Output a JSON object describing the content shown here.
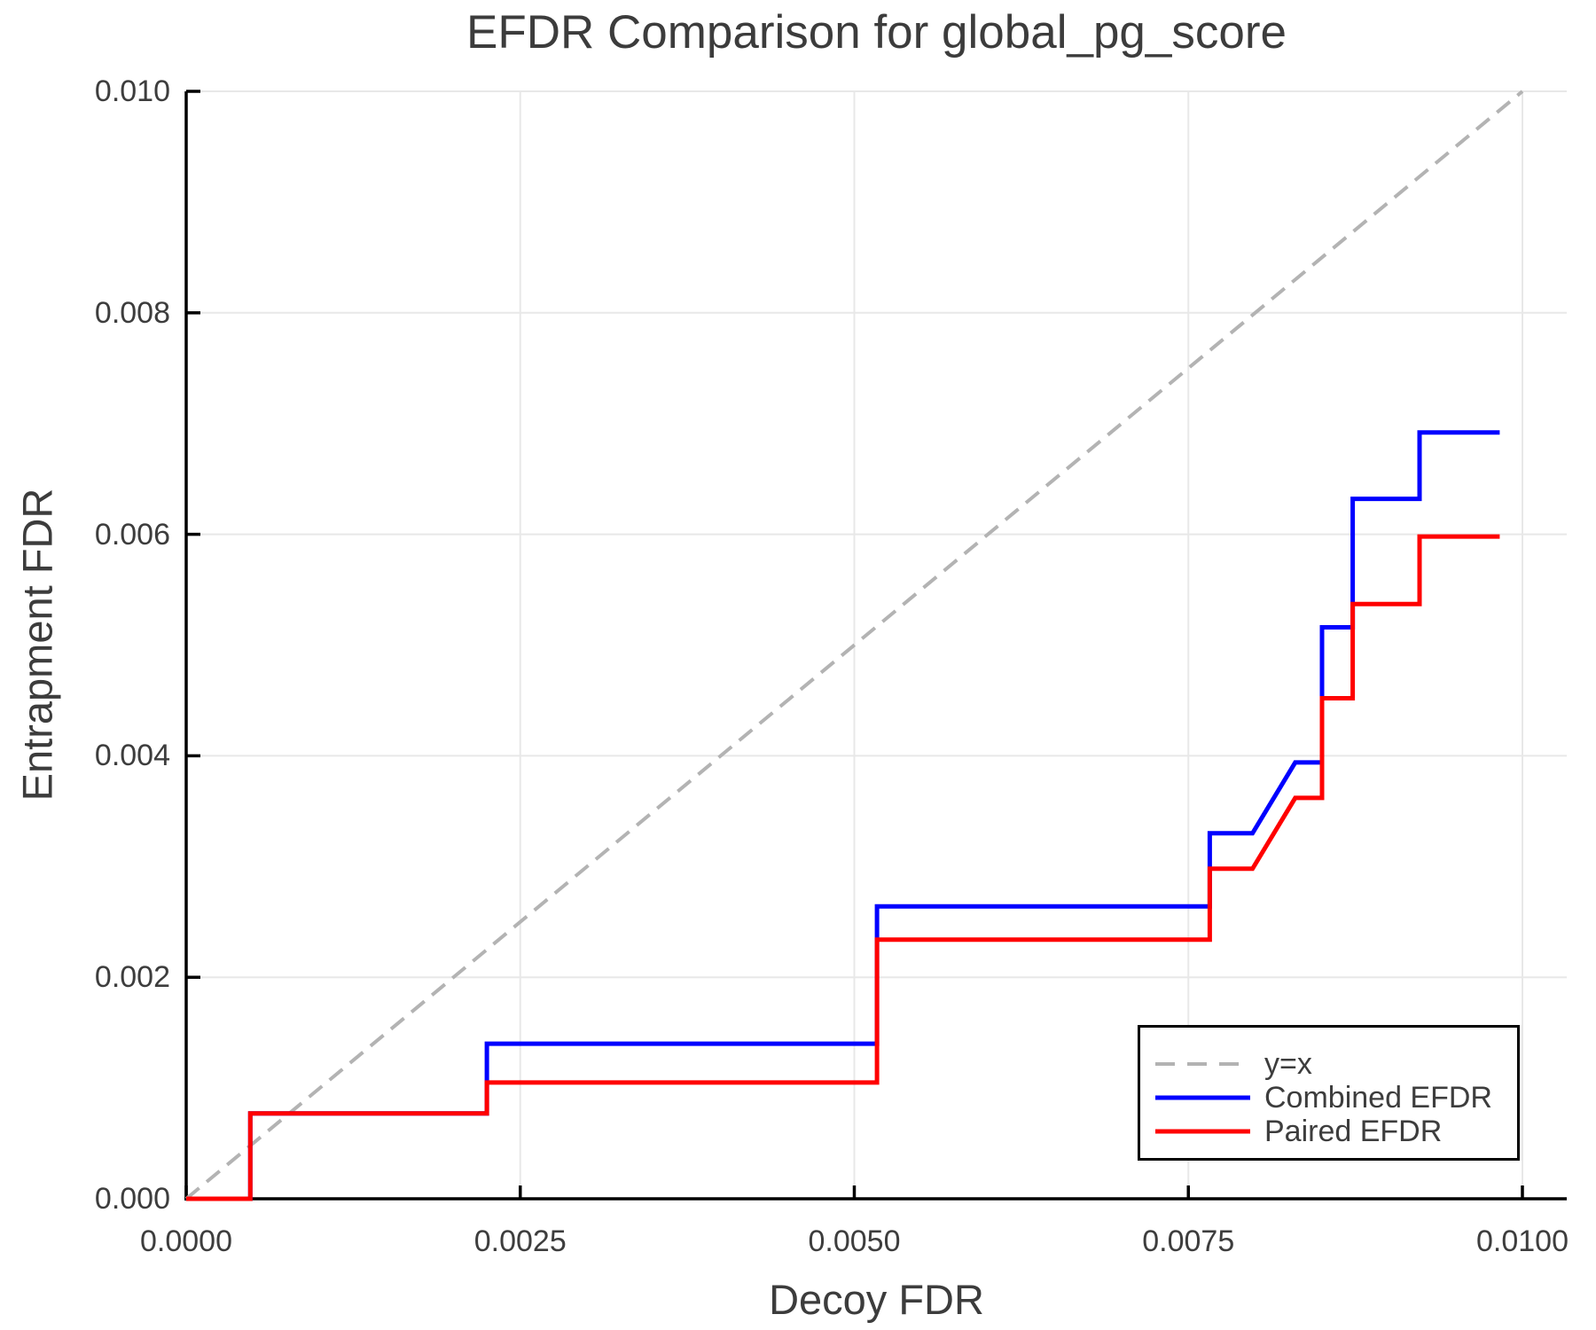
{
  "chart_data": {
    "type": "line",
    "title": "EFDR Comparison for global_pg_score",
    "xlabel": "Decoy FDR",
    "ylabel": "Entrapment FDR",
    "xlim": [
      0,
      0.01033
    ],
    "ylim": [
      0,
      0.01
    ],
    "grid": true,
    "legend_position": "lower right",
    "xticks": {
      "values": [
        0,
        0.0025,
        0.005,
        0.0075,
        0.01
      ],
      "labels": [
        "0.0000",
        "0.0025",
        "0.0050",
        "0.0075",
        "0.0100"
      ]
    },
    "yticks": {
      "values": [
        0,
        0.002,
        0.004,
        0.006,
        0.008,
        0.01
      ],
      "labels": [
        "0.000",
        "0.002",
        "0.004",
        "0.006",
        "0.008",
        "0.010"
      ]
    },
    "series": [
      {
        "name": "y=x",
        "color": "#b3b3b3",
        "style": "dashed",
        "points": [
          [
            0,
            0
          ],
          [
            0.01,
            0.01
          ]
        ]
      },
      {
        "name": "Combined EFDR",
        "color": "#0000ff",
        "style": "solid",
        "points": [
          [
            0,
            0
          ],
          [
            0.00048,
            0
          ],
          [
            0.00048,
            0.00077
          ],
          [
            0.00225,
            0.00077
          ],
          [
            0.00225,
            0.0014
          ],
          [
            0.00517,
            0.0014
          ],
          [
            0.00517,
            0.00264
          ],
          [
            0.00766,
            0.00264
          ],
          [
            0.00766,
            0.0033
          ],
          [
            0.00798,
            0.0033
          ],
          [
            0.0083,
            0.00394
          ],
          [
            0.0085,
            0.00394
          ],
          [
            0.0085,
            0.00516
          ],
          [
            0.00873,
            0.00516
          ],
          [
            0.00873,
            0.00632
          ],
          [
            0.00923,
            0.00632
          ],
          [
            0.00923,
            0.00692
          ],
          [
            0.00983,
            0.00692
          ]
        ]
      },
      {
        "name": "Paired EFDR",
        "color": "#ff0000",
        "style": "solid",
        "points": [
          [
            0,
            0
          ],
          [
            0.00048,
            0
          ],
          [
            0.00048,
            0.00077
          ],
          [
            0.00225,
            0.00077
          ],
          [
            0.00225,
            0.00105
          ],
          [
            0.00517,
            0.00105
          ],
          [
            0.00517,
            0.00234
          ],
          [
            0.00766,
            0.00234
          ],
          [
            0.00766,
            0.00298
          ],
          [
            0.00798,
            0.00298
          ],
          [
            0.0083,
            0.00362
          ],
          [
            0.0085,
            0.00362
          ],
          [
            0.0085,
            0.00452
          ],
          [
            0.00873,
            0.00452
          ],
          [
            0.00873,
            0.00537
          ],
          [
            0.00923,
            0.00537
          ],
          [
            0.00923,
            0.00598
          ],
          [
            0.00983,
            0.00598
          ]
        ]
      }
    ],
    "colors": {
      "axis": "#000000",
      "grid": "#e8e8e8",
      "text": "#3d3d3d"
    }
  }
}
